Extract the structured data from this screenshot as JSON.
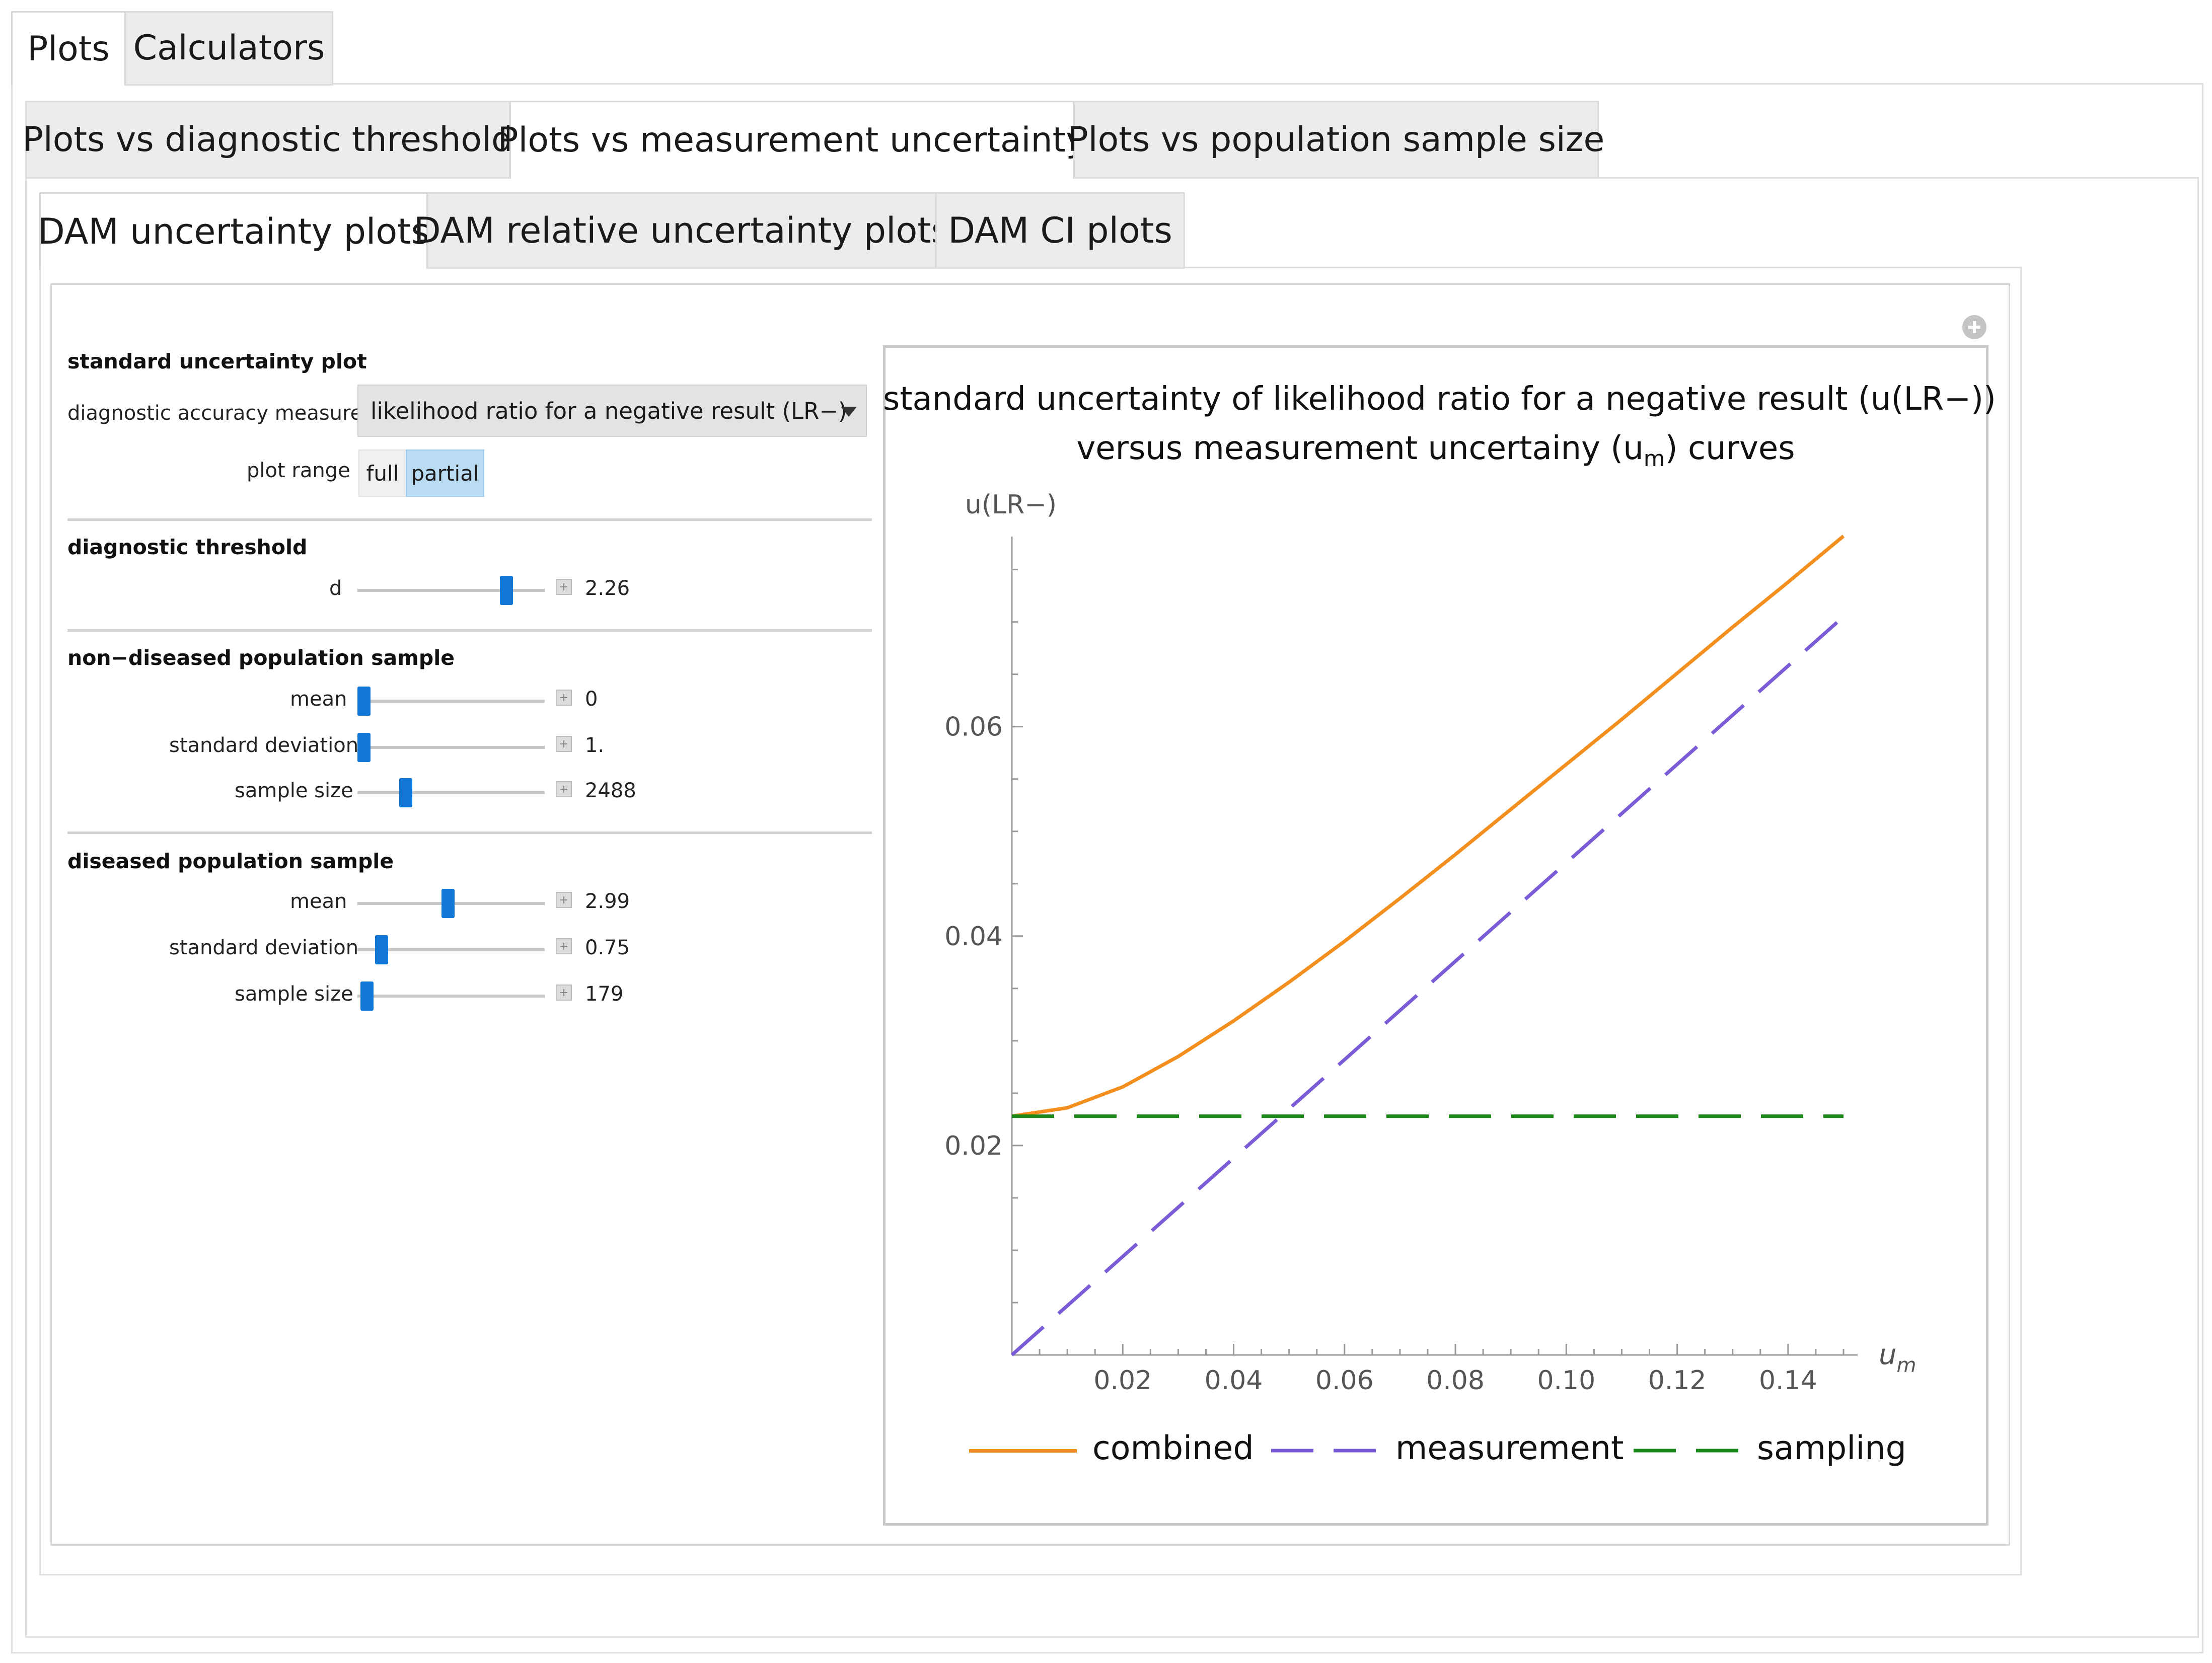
{
  "top_tabs": [
    {
      "label": "Plots",
      "active": true
    },
    {
      "label": "Calculators",
      "active": false
    }
  ],
  "second_tabs": [
    {
      "label": "Plots vs diagnostic threshold",
      "active": false
    },
    {
      "label": "Plots vs measurement uncertainty",
      "active": true
    },
    {
      "label": "Plots vs population sample size",
      "active": false
    }
  ],
  "third_tabs": [
    {
      "label": "DAM uncertainty plots",
      "active": true
    },
    {
      "label": "DAM relative uncertainty plots",
      "active": false
    },
    {
      "label": "DAM CI plots",
      "active": false
    }
  ],
  "controls": {
    "plot_section": {
      "title": "standard uncertainty plot",
      "measure_label": "diagnostic accuracy measure:",
      "measure_value": "likelihood ratio for a negative result (LR−)",
      "range_label": "plot range",
      "range_options": [
        "full",
        "partial"
      ],
      "range_selected": "partial"
    },
    "threshold_section": {
      "title": "diagnostic threshold",
      "d": {
        "label": "d",
        "value": "2.26",
        "position": 0.79
      }
    },
    "nondiseased_section": {
      "title": "non−diseased population sample",
      "mean": {
        "label": "mean",
        "value": "0",
        "position": 0.0
      },
      "sd": {
        "label": "standard deviation",
        "value": "1.",
        "position": 0.0
      },
      "n": {
        "label": "sample size",
        "value": "2488",
        "position": 0.25
      }
    },
    "diseased_section": {
      "title": "diseased population sample",
      "mean": {
        "label": "mean",
        "value": "2.99",
        "position": 0.48
      },
      "sd": {
        "label": "standard deviation",
        "value": "0.75",
        "position": 0.1
      },
      "n": {
        "label": "sample size",
        "value": "179",
        "position": 0.02
      }
    }
  },
  "icons": {
    "expand": "plus-circle-icon",
    "spinner": "plus-box-icon",
    "dropdown": "chevron-down-icon"
  },
  "chart_data": {
    "type": "line",
    "title_line1": "standard uncertainty of likelihood ratio for a negative result (u(LR−))",
    "title_line2_pre": "versus measurement uncertainy (u",
    "title_line2_sub": "m",
    "title_line2_post": ") curves",
    "ylabel": "u(LR−)",
    "xlabel_main": "u",
    "xlabel_sub": "m",
    "xlim": [
      0,
      0.15
    ],
    "ylim": [
      0,
      0.077
    ],
    "xticks": [
      0.02,
      0.04,
      0.06,
      0.08,
      0.1,
      0.12,
      0.14
    ],
    "xtick_labels": [
      "0.02",
      "0.04",
      "0.06",
      "0.08",
      "0.10",
      "0.12",
      "0.14"
    ],
    "yticks": [
      0.02,
      0.04,
      0.06
    ],
    "ytick_labels": [
      "0.02",
      "0.04",
      "0.06"
    ],
    "legend_position": "bottom",
    "series": [
      {
        "name": "combined",
        "color": "#f28f1f",
        "style": "solid",
        "x": [
          0,
          0.01,
          0.02,
          0.03,
          0.04,
          0.05,
          0.06,
          0.07,
          0.08,
          0.09,
          0.1,
          0.11,
          0.12,
          0.13,
          0.14,
          0.15
        ],
        "y": [
          0.0228,
          0.0236,
          0.0256,
          0.0285,
          0.0319,
          0.0356,
          0.0395,
          0.0436,
          0.0478,
          0.0521,
          0.0564,
          0.0607,
          0.0651,
          0.0695,
          0.0738,
          0.0782
        ]
      },
      {
        "name": "measurement",
        "color": "#7a5cd6",
        "style": "dashed",
        "x": [
          0,
          0.15
        ],
        "y": [
          0,
          0.0705
        ]
      },
      {
        "name": "sampling",
        "color": "#1a8a1a",
        "style": "dashed",
        "x": [
          0,
          0.15
        ],
        "y": [
          0.0228,
          0.0228
        ]
      }
    ]
  }
}
